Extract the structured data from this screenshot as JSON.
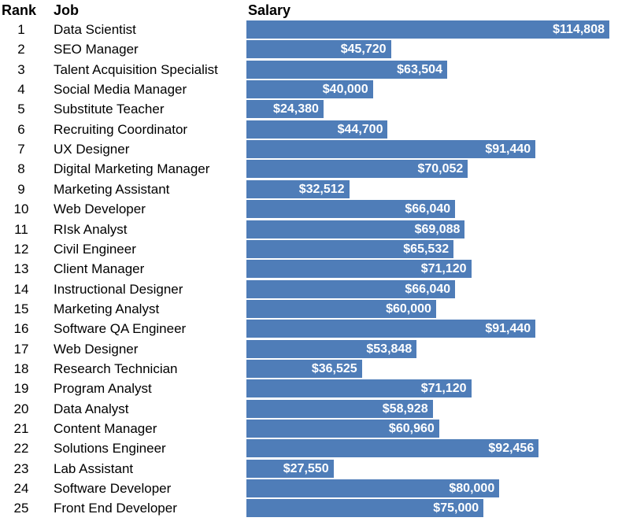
{
  "headers": {
    "rank": "Rank",
    "job": "Job",
    "salary": "Salary"
  },
  "colors": {
    "bar": "#4f7db8",
    "label": "#ffffff"
  },
  "chart_data": {
    "type": "bar",
    "orientation": "horizontal",
    "title": "",
    "xlabel": "",
    "ylabel": "",
    "grid": false,
    "xlim": [
      0,
      114808
    ],
    "rows": [
      {
        "rank": "1",
        "job": "Data Scientist",
        "value": 114808,
        "label": "$114,808"
      },
      {
        "rank": "2",
        "job": "SEO Manager",
        "value": 45720,
        "label": "$45,720"
      },
      {
        "rank": "3",
        "job": "Talent Acquisition Specialist",
        "value": 63504,
        "label": "$63,504"
      },
      {
        "rank": "4",
        "job": "Social Media Manager",
        "value": 40000,
        "label": "$40,000"
      },
      {
        "rank": "5",
        "job": "Substitute Teacher",
        "value": 24380,
        "label": "$24,380"
      },
      {
        "rank": "6",
        "job": "Recruiting Coordinator",
        "value": 44700,
        "label": "$44,700"
      },
      {
        "rank": "7",
        "job": "UX Designer",
        "value": 91440,
        "label": "$91,440"
      },
      {
        "rank": "8",
        "job": "Digital Marketing Manager",
        "value": 70052,
        "label": "$70,052"
      },
      {
        "rank": "9",
        "job": "Marketing Assistant",
        "value": 32512,
        "label": "$32,512"
      },
      {
        "rank": "10",
        "job": "Web Developer",
        "value": 66040,
        "label": "$66,040"
      },
      {
        "rank": "11",
        "job": "RIsk Analyst",
        "value": 69088,
        "label": "$69,088"
      },
      {
        "rank": "12",
        "job": "Civil Engineer",
        "value": 65532,
        "label": "$65,532"
      },
      {
        "rank": "13",
        "job": "Client Manager",
        "value": 71120,
        "label": "$71,120"
      },
      {
        "rank": "14",
        "job": "Instructional Designer",
        "value": 66040,
        "label": "$66,040"
      },
      {
        "rank": "15",
        "job": "Marketing Analyst",
        "value": 60000,
        "label": "$60,000"
      },
      {
        "rank": "16",
        "job": "Software QA Engineer",
        "value": 91440,
        "label": "$91,440"
      },
      {
        "rank": "17",
        "job": "Web Designer",
        "value": 53848,
        "label": "$53,848"
      },
      {
        "rank": "18",
        "job": "Research Technician",
        "value": 36525,
        "label": "$36,525"
      },
      {
        "rank": "19",
        "job": "Program Analyst",
        "value": 71120,
        "label": "$71,120"
      },
      {
        "rank": "20",
        "job": "Data Analyst",
        "value": 58928,
        "label": "$58,928"
      },
      {
        "rank": "21",
        "job": "Content Manager",
        "value": 60960,
        "label": "$60,960"
      },
      {
        "rank": "22",
        "job": "Solutions Engineer",
        "value": 92456,
        "label": "$92,456"
      },
      {
        "rank": "23",
        "job": "Lab Assistant",
        "value": 27550,
        "label": "$27,550"
      },
      {
        "rank": "24",
        "job": "Software Developer",
        "value": 80000,
        "label": "$80,000"
      },
      {
        "rank": "25",
        "job": "Front End Developer",
        "value": 75000,
        "label": "$75,000"
      }
    ]
  }
}
